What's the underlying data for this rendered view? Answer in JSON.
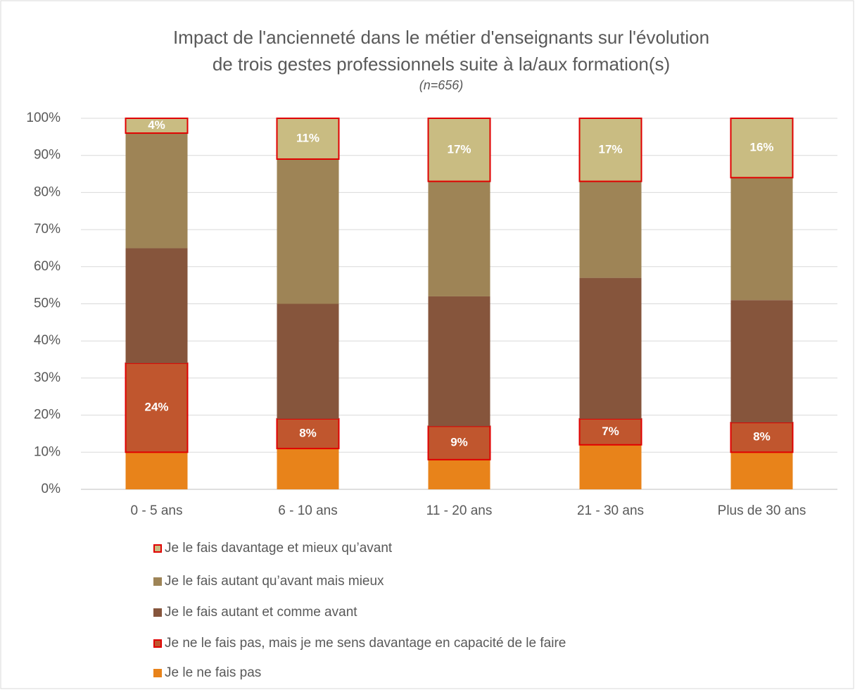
{
  "chart_data": {
    "type": "stacked_bar",
    "title": [
      "Impact de l'ancienneté dans le métier d'enseignants sur l'évolution",
      "de trois gestes professionnels suite à la/aux formation(s)"
    ],
    "subtitle": "(n=656)",
    "categories": [
      "0 - 5 ans",
      "6 - 10 ans",
      "11 - 20 ans",
      "21 - 30 ans",
      "Plus de 30 ans"
    ],
    "series": [
      {
        "name": "Je le ne fais pas",
        "color": "#e8831a",
        "values": [
          10,
          11,
          8,
          12,
          10
        ]
      },
      {
        "name": "Je ne le fais pas, mais je me sens davantage en capacité de le faire",
        "color": "#c0562e",
        "border_color": "#e00000",
        "values": [
          24,
          8,
          9,
          7,
          8
        ],
        "value_labels": [
          "24%",
          "8%",
          "9%",
          "7%",
          "8%"
        ]
      },
      {
        "name": "Je le fais autant et comme avant",
        "color": "#86553c",
        "values": [
          31,
          31,
          35,
          38,
          33
        ]
      },
      {
        "name": "Je le fais autant qu’avant mais mieux",
        "color": "#9e8456",
        "values": [
          31,
          39,
          31,
          26,
          33
        ]
      },
      {
        "name": "Je le fais davantage et mieux qu’avant",
        "color": "#c9bc82",
        "border_color": "#e00000",
        "values": [
          4,
          11,
          17,
          17,
          16
        ],
        "value_labels": [
          "4%",
          "11%",
          "17%",
          "17%",
          "16%"
        ]
      }
    ],
    "ylim": [
      0,
      100
    ],
    "yticks": [
      {
        "value": 0,
        "label": "0%"
      },
      {
        "value": 10,
        "label": "10%"
      },
      {
        "value": 20,
        "label": "20%"
      },
      {
        "value": 30,
        "label": "30%"
      },
      {
        "value": 40,
        "label": "40%"
      },
      {
        "value": 50,
        "label": "50%"
      },
      {
        "value": 60,
        "label": "60%"
      },
      {
        "value": 70,
        "label": "70%"
      },
      {
        "value": 80,
        "label": "80%"
      },
      {
        "value": 90,
        "label": "90%"
      },
      {
        "value": 100,
        "label": "100%"
      }
    ],
    "grid": true,
    "legend": "bottom"
  }
}
